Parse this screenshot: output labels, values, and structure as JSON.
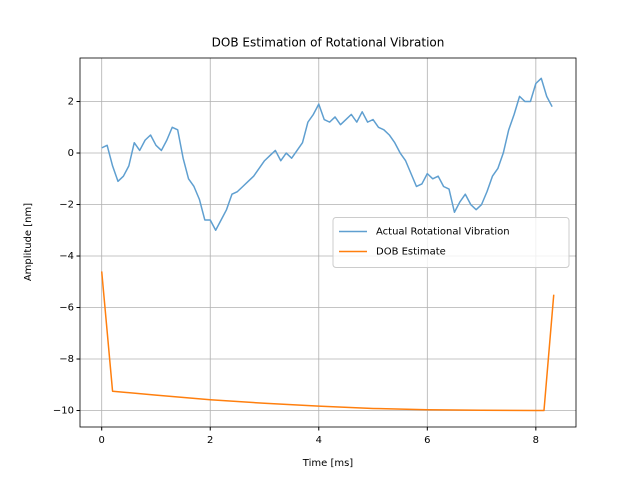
{
  "chart_data": {
    "type": "line",
    "title": "DOB Estimation of Rotational Vibration",
    "x_label": "Time [ms]",
    "y_label": "Amplitude [nm]",
    "xlim": [
      -0.4,
      8.74
    ],
    "ylim": [
      -10.64,
      3.69
    ],
    "xticks": [
      0,
      2,
      4,
      6,
      8
    ],
    "yticks": [
      {
        "value": -10,
        "label": "−10"
      },
      {
        "value": -8,
        "label": "−8"
      },
      {
        "value": -6,
        "label": "−6"
      },
      {
        "value": -4,
        "label": "−4"
      },
      {
        "value": -2,
        "label": "−2"
      },
      0,
      2
    ],
    "grid": true,
    "legend": "center right",
    "series": [
      {
        "name": "Actual Rotational Vibration",
        "color": "#5f9fd0",
        "x": [
          0,
          0.1,
          0.2,
          0.3,
          0.4,
          0.5,
          0.6,
          0.7,
          0.8,
          0.9,
          1.0,
          1.1,
          1.2,
          1.3,
          1.4,
          1.5,
          1.6,
          1.7,
          1.8,
          1.9,
          2.0,
          2.1,
          2.2,
          2.3,
          2.4,
          2.5,
          2.6,
          2.7,
          2.8,
          2.9,
          3.0,
          3.1,
          3.2,
          3.3,
          3.4,
          3.5,
          3.6,
          3.7,
          3.8,
          3.9,
          4.0,
          4.1,
          4.2,
          4.3,
          4.4,
          4.5,
          4.6,
          4.7,
          4.8,
          4.9,
          5.0,
          5.1,
          5.2,
          5.3,
          5.4,
          5.5,
          5.6,
          5.7,
          5.8,
          5.9,
          6.0,
          6.1,
          6.2,
          6.3,
          6.4,
          6.5,
          6.6,
          6.7,
          6.8,
          6.9,
          7.0,
          7.1,
          7.2,
          7.3,
          7.4,
          7.5,
          7.6,
          7.7,
          7.8,
          7.9,
          8.0,
          8.1,
          8.2,
          8.3
        ],
        "values": [
          0.2,
          0.3,
          -0.5,
          -1.1,
          -0.9,
          -0.5,
          0.4,
          0.1,
          0.5,
          0.7,
          0.3,
          0.1,
          0.5,
          1.0,
          0.9,
          -0.2,
          -1.0,
          -1.3,
          -1.8,
          -2.6,
          -2.6,
          -3.0,
          -2.6,
          -2.2,
          -1.6,
          -1.5,
          -1.3,
          -1.1,
          -0.9,
          -0.6,
          -0.3,
          -0.1,
          0.1,
          -0.3,
          0.0,
          -0.2,
          0.1,
          0.4,
          1.2,
          1.5,
          1.9,
          1.3,
          1.2,
          1.4,
          1.1,
          1.3,
          1.5,
          1.2,
          1.6,
          1.2,
          1.3,
          1.0,
          0.9,
          0.7,
          0.4,
          0.0,
          -0.3,
          -0.8,
          -1.3,
          -1.2,
          -0.8,
          -1.0,
          -0.9,
          -1.3,
          -1.4,
          -2.3,
          -1.9,
          -1.6,
          -2.0,
          -2.2,
          -2.0,
          -1.5,
          -0.9,
          -0.6,
          0.0,
          0.9,
          1.5,
          2.2,
          2.0,
          2.0,
          2.7,
          2.9,
          2.2,
          1.8
        ]
      },
      {
        "name": "DOB Estimate",
        "color": "#ff7f0e",
        "x": [
          0,
          0.2,
          1,
          2,
          3,
          4,
          5,
          6,
          7,
          8,
          8.15,
          8.33
        ],
        "values": [
          -4.6,
          -9.25,
          -9.4,
          -9.58,
          -9.72,
          -9.83,
          -9.92,
          -9.97,
          -9.99,
          -10.0,
          -10.0,
          -5.5
        ]
      }
    ]
  }
}
